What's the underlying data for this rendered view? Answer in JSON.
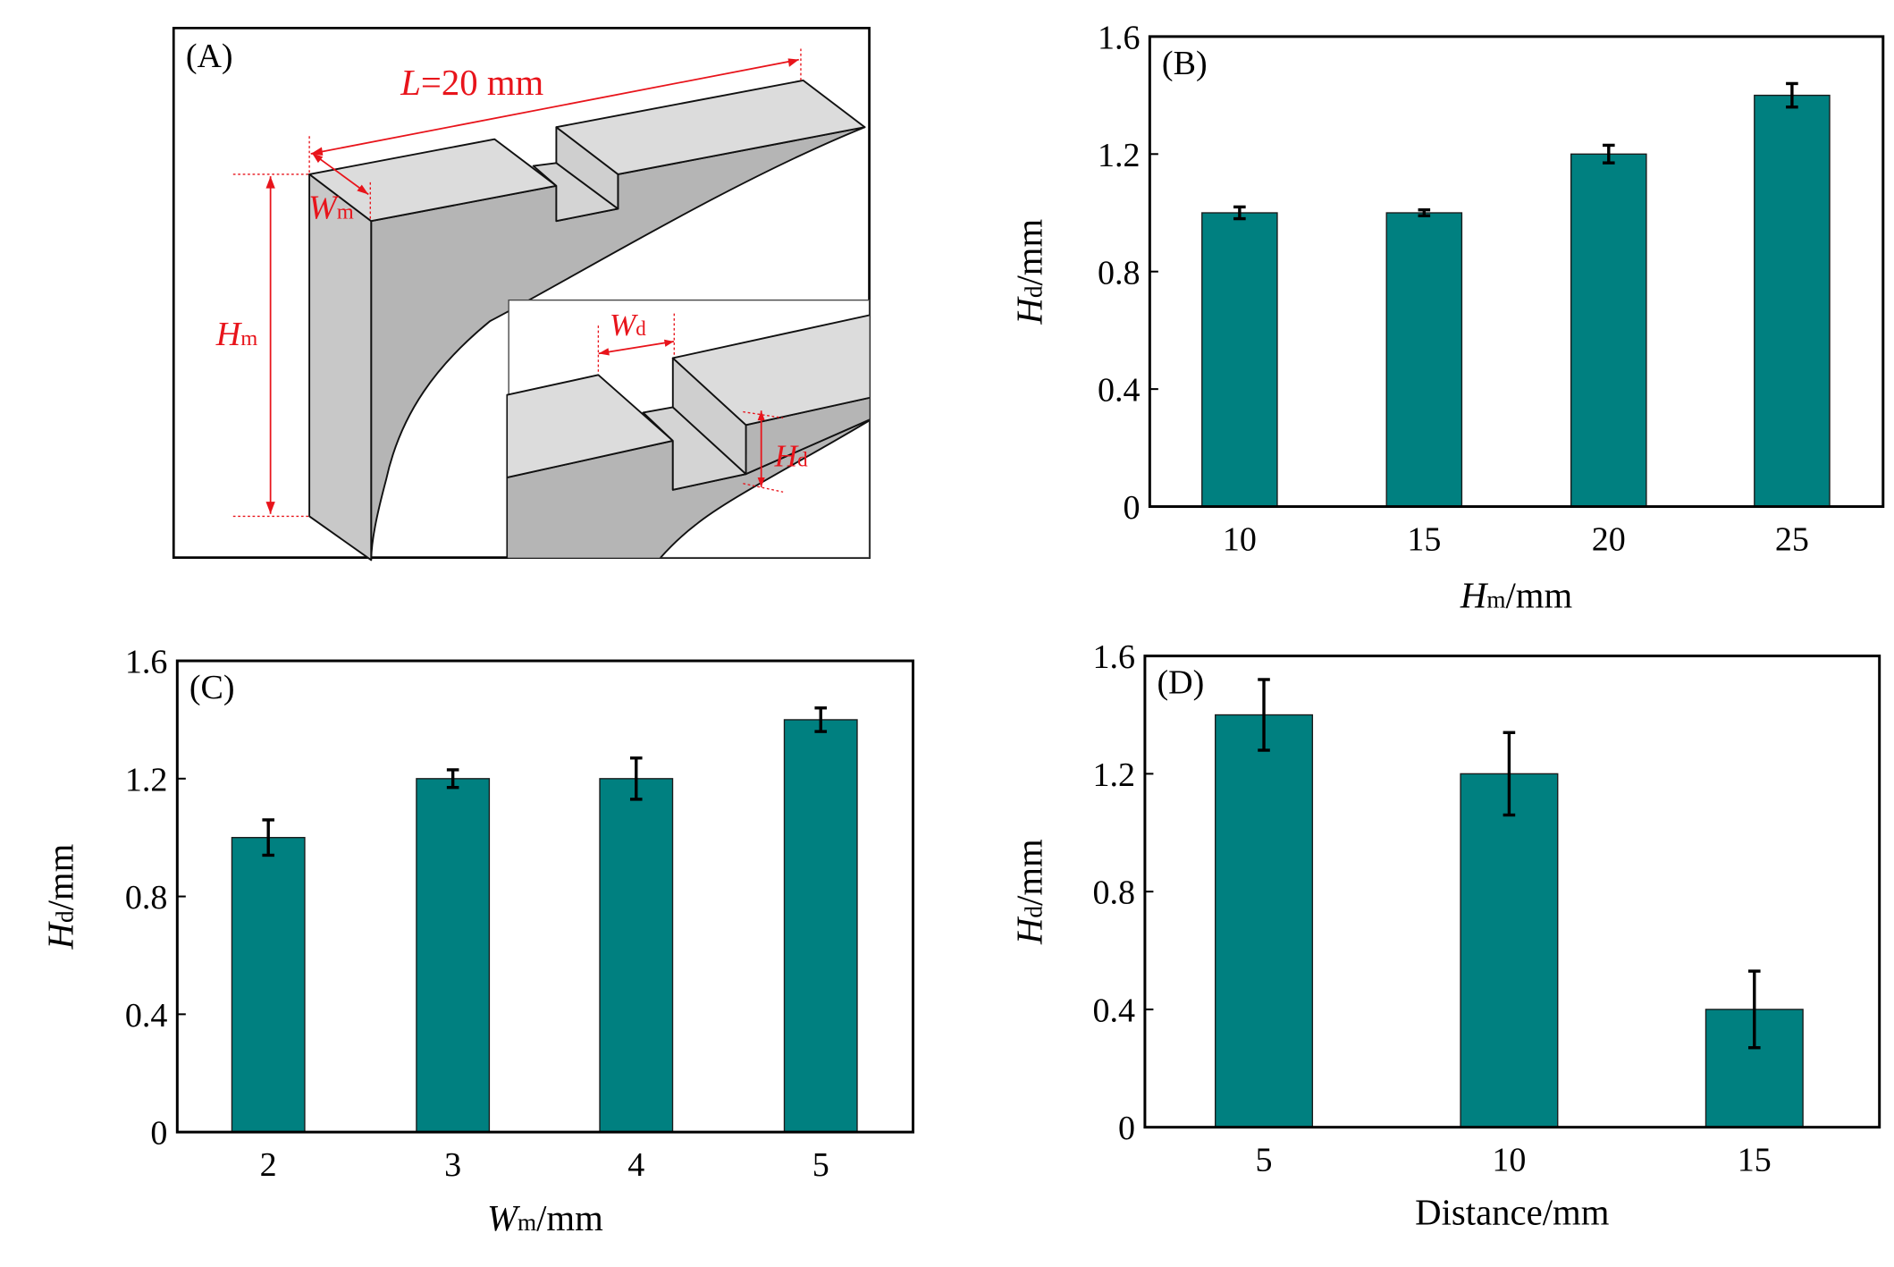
{
  "diagram": {
    "panel_label": "(A)",
    "length_label": {
      "italic": "L",
      "rest": "=20 mm"
    },
    "wm_label": {
      "italic": "W",
      "sub": "m"
    },
    "hm_label": {
      "italic": "H",
      "sub": "m"
    },
    "wd_label": {
      "italic": "W",
      "sub": "d"
    },
    "hd_label": {
      "italic": "H",
      "sub": "d"
    },
    "colors": {
      "annotation": "#e8141b",
      "top_face": "#dcdcdc",
      "side_face": "#b5b5b5",
      "front_face": "#c8c8c8"
    }
  },
  "chart_data": [
    {
      "type": "bar",
      "panel_label": "(B)",
      "categories": [
        "10",
        "15",
        "20",
        "25"
      ],
      "values": [
        1.0,
        1.0,
        1.2,
        1.4
      ],
      "errors": [
        0.02,
        0.01,
        0.03,
        0.04
      ],
      "xlabel": {
        "italic": "H",
        "sub": "m",
        "rest": "/mm"
      },
      "ylabel": {
        "italic": "H",
        "sub": "d",
        "rest": "/mm"
      },
      "yticks": [
        "0",
        "0.4",
        "0.8",
        "1.2",
        "1.6"
      ],
      "ylim": [
        0,
        1.6
      ],
      "grid": false,
      "bar_color": "#008080"
    },
    {
      "type": "bar",
      "panel_label": "(C)",
      "categories": [
        "2",
        "3",
        "4",
        "5"
      ],
      "values": [
        1.0,
        1.2,
        1.2,
        1.4
      ],
      "errors": [
        0.06,
        0.03,
        0.07,
        0.04
      ],
      "xlabel": {
        "italic": "W",
        "sub": "m",
        "rest": "/mm"
      },
      "ylabel": {
        "italic": "H",
        "sub": "d",
        "rest": "/mm"
      },
      "yticks": [
        "0",
        "0.4",
        "0.8",
        "1.2",
        "1.6"
      ],
      "ylim": [
        0,
        1.6
      ],
      "grid": false,
      "bar_color": "#008080"
    },
    {
      "type": "bar",
      "panel_label": "(D)",
      "categories": [
        "5",
        "10",
        "15"
      ],
      "values": [
        1.4,
        1.2,
        0.4
      ],
      "errors": [
        0.12,
        0.14,
        0.13
      ],
      "xlabel": {
        "italic": "",
        "sub": "",
        "rest": "Distance/mm"
      },
      "ylabel": {
        "italic": "H",
        "sub": "d",
        "rest": "/mm"
      },
      "yticks": [
        "0",
        "0.4",
        "0.8",
        "1.2",
        "1.6"
      ],
      "ylim": [
        0,
        1.6
      ],
      "grid": false,
      "bar_color": "#008080"
    }
  ]
}
